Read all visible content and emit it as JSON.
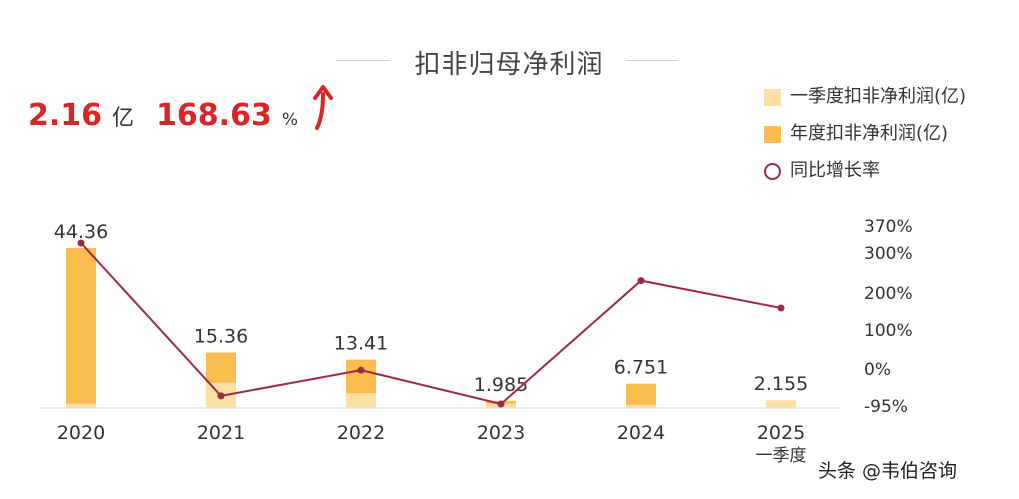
{
  "chart_data": {
    "type": "bar",
    "title": "扣非归母净利润",
    "categories": [
      "2020",
      "2021",
      "2022",
      "2023",
      "2024",
      "2025"
    ],
    "sublabels": [
      "",
      "",
      "",
      "",
      "",
      "一季度"
    ],
    "series": [
      {
        "name": "一季度扣非净利润(亿)",
        "type": "bar",
        "color": "#fbe0a6",
        "values": [
          1.2,
          7.0,
          4.1,
          1.2,
          0.8,
          2.155
        ]
      },
      {
        "name": "年度扣非净利润(亿)",
        "type": "bar",
        "color": "#fbbd4f",
        "values": [
          44.36,
          15.36,
          13.41,
          1.985,
          6.751,
          null
        ]
      },
      {
        "name": "同比增长率",
        "type": "line",
        "color": "#9b2a45",
        "values": [
          345,
          -70,
          0,
          -92,
          243,
          168.63
        ]
      }
    ],
    "data_labels": [
      "44.36",
      "15.36",
      "13.41",
      "1.985",
      "6.751",
      "2.155"
    ],
    "y2_ticks": [
      "370%",
      "300%",
      "200%",
      "100%",
      "0%",
      "-95%"
    ],
    "y2_tick_values": [
      370,
      300,
      200,
      100,
      0,
      -95
    ],
    "legend_position": "top-right",
    "grid": false
  },
  "kpi": {
    "value": "2.16",
    "unit": "亿",
    "growth": "168.63",
    "growth_unit": "%",
    "arrow_icon": "up-arrow-icon"
  },
  "colors": {
    "accent": "#d9242a",
    "bar_year": "#fbbd4f",
    "bar_q1": "#fbe0a6",
    "line": "#9b2a45"
  },
  "watermark": "头条 @韦伯咨询"
}
